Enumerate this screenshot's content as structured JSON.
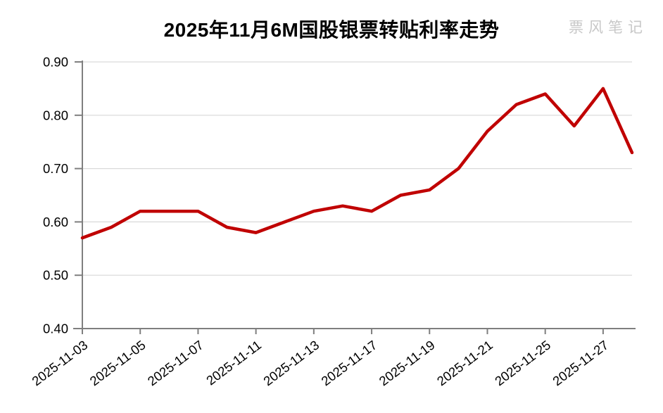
{
  "header": {
    "title": "2025年11月6M国股银票转贴利率走势",
    "watermark": "票风笔记"
  },
  "chart_data": {
    "type": "line",
    "title": "2025年11月6M国股银票转贴利率走势",
    "x": [
      "2025-11-03",
      "2025-11-04",
      "2025-11-05",
      "2025-11-06",
      "2025-11-07",
      "2025-11-10",
      "2025-11-11",
      "2025-11-12",
      "2025-11-13",
      "2025-11-14",
      "2025-11-17",
      "2025-11-18",
      "2025-11-19",
      "2025-11-20",
      "2025-11-21",
      "2025-11-24",
      "2025-11-25",
      "2025-11-26",
      "2025-11-27",
      "2025-11-28"
    ],
    "values": [
      0.57,
      0.59,
      0.62,
      0.62,
      0.62,
      0.59,
      0.58,
      0.6,
      0.62,
      0.63,
      0.62,
      0.65,
      0.66,
      0.7,
      0.77,
      0.82,
      0.84,
      0.78,
      0.85,
      0.73
    ],
    "x_tick_labels": [
      "2025-11-03",
      "2025-11-05",
      "2025-11-07",
      "2025-11-11",
      "2025-11-13",
      "2025-11-17",
      "2025-11-19",
      "2025-11-21",
      "2025-11-25",
      "2025-11-27"
    ],
    "y_tick_labels": [
      "0.40",
      "0.50",
      "0.60",
      "0.70",
      "0.80",
      "0.90"
    ],
    "y_ticks": [
      0.4,
      0.5,
      0.6,
      0.7,
      0.8,
      0.9
    ],
    "ylim": [
      0.4,
      0.9
    ],
    "xlabel": "",
    "ylabel": "",
    "legend": false,
    "grid": true,
    "line_color": "#c00000",
    "grid_color": "#d9d9d9",
    "axis_color": "#7f7f7f",
    "text_color": "#000000",
    "watermark_color": "#c8c8c8"
  }
}
